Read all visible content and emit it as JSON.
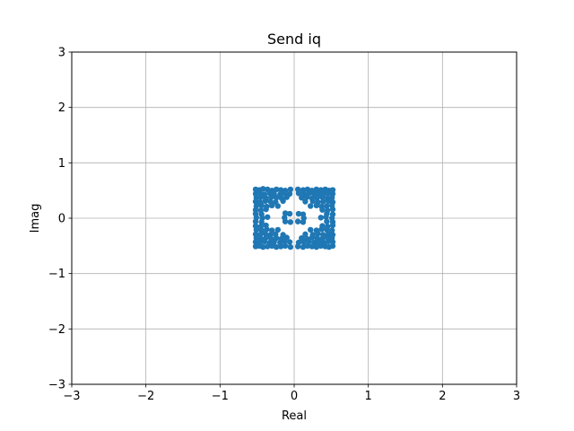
{
  "chart_data": {
    "type": "scatter",
    "title": "Send iq",
    "xlabel": "Real",
    "ylabel": "Imag",
    "xlim": [
      -3,
      3
    ],
    "ylim": [
      -3,
      3
    ],
    "xticks": [
      -3,
      -2,
      -1,
      0,
      1,
      2,
      3
    ],
    "yticks": [
      -3,
      -2,
      -1,
      0,
      1,
      2,
      3
    ],
    "xtick_labels": [
      "−3",
      "−2",
      "−1",
      "0",
      "1",
      "2",
      "3"
    ],
    "ytick_labels": [
      "−3",
      "−2",
      "−1",
      "0",
      "1",
      "2",
      "3"
    ],
    "grid": true,
    "series": [
      {
        "color": "#1f77b4",
        "marker": "dot",
        "points": [
          [
            -0.52,
            0.52
          ],
          [
            -0.47,
            0.51
          ],
          [
            -0.42,
            0.53
          ],
          [
            -0.36,
            0.52
          ],
          [
            -0.3,
            0.5
          ],
          [
            -0.24,
            0.52
          ],
          [
            -0.18,
            0.51
          ],
          [
            -0.12,
            0.5
          ],
          [
            -0.05,
            0.52
          ],
          [
            0.05,
            0.52
          ],
          [
            0.12,
            0.51
          ],
          [
            0.18,
            0.52
          ],
          [
            0.24,
            0.5
          ],
          [
            0.3,
            0.52
          ],
          [
            0.36,
            0.51
          ],
          [
            0.42,
            0.52
          ],
          [
            0.47,
            0.5
          ],
          [
            0.52,
            0.51
          ],
          [
            -0.52,
            0.44
          ],
          [
            -0.46,
            0.45
          ],
          [
            -0.4,
            0.43
          ],
          [
            -0.33,
            0.45
          ],
          [
            -0.27,
            0.44
          ],
          [
            -0.19,
            0.43
          ],
          [
            -0.13,
            0.45
          ],
          [
            -0.06,
            0.44
          ],
          [
            0.06,
            0.45
          ],
          [
            0.13,
            0.44
          ],
          [
            0.2,
            0.45
          ],
          [
            0.27,
            0.43
          ],
          [
            0.33,
            0.45
          ],
          [
            0.4,
            0.44
          ],
          [
            0.46,
            0.45
          ],
          [
            0.52,
            0.44
          ],
          [
            -0.51,
            0.37
          ],
          [
            -0.45,
            0.38
          ],
          [
            -0.38,
            0.36
          ],
          [
            -0.31,
            0.38
          ],
          [
            -0.24,
            0.37
          ],
          [
            -0.17,
            0.36
          ],
          [
            -0.1,
            0.38
          ],
          [
            0.1,
            0.37
          ],
          [
            0.17,
            0.38
          ],
          [
            0.24,
            0.36
          ],
          [
            0.31,
            0.37
          ],
          [
            0.38,
            0.38
          ],
          [
            0.45,
            0.36
          ],
          [
            0.51,
            0.37
          ],
          [
            -0.52,
            0.3
          ],
          [
            -0.46,
            0.29
          ],
          [
            -0.39,
            0.31
          ],
          [
            -0.32,
            0.3
          ],
          [
            -0.25,
            0.29
          ],
          [
            -0.15,
            0.31
          ],
          [
            0.15,
            0.3
          ],
          [
            0.25,
            0.31
          ],
          [
            0.32,
            0.29
          ],
          [
            0.39,
            0.3
          ],
          [
            0.46,
            0.31
          ],
          [
            0.52,
            0.29
          ],
          [
            -0.51,
            0.22
          ],
          [
            -0.44,
            0.23
          ],
          [
            -0.37,
            0.21
          ],
          [
            -0.3,
            0.23
          ],
          [
            -0.22,
            0.22
          ],
          [
            0.22,
            0.22
          ],
          [
            0.3,
            0.23
          ],
          [
            0.37,
            0.21
          ],
          [
            0.44,
            0.22
          ],
          [
            0.51,
            0.23
          ],
          [
            -0.52,
            0.15
          ],
          [
            -0.45,
            0.14
          ],
          [
            -0.38,
            0.16
          ],
          [
            0.38,
            0.15
          ],
          [
            0.45,
            0.14
          ],
          [
            0.52,
            0.16
          ],
          [
            -0.52,
            0.08
          ],
          [
            -0.44,
            0.07
          ],
          [
            -0.12,
            0.09
          ],
          [
            -0.06,
            0.08
          ],
          [
            0.06,
            0.08
          ],
          [
            0.12,
            0.07
          ],
          [
            0.44,
            0.08
          ],
          [
            0.52,
            0.07
          ],
          [
            -0.51,
            0.01
          ],
          [
            -0.43,
            0.0
          ],
          [
            -0.36,
            0.02
          ],
          [
            -0.13,
            0.01
          ],
          [
            0.13,
            0.0
          ],
          [
            0.36,
            0.01
          ],
          [
            0.43,
            0.02
          ],
          [
            0.51,
            0.0
          ],
          [
            -0.52,
            -0.06
          ],
          [
            -0.44,
            -0.07
          ],
          [
            -0.12,
            -0.06
          ],
          [
            -0.05,
            -0.07
          ],
          [
            0.05,
            -0.06
          ],
          [
            0.12,
            -0.07
          ],
          [
            0.44,
            -0.06
          ],
          [
            0.52,
            -0.07
          ],
          [
            -0.52,
            -0.14
          ],
          [
            -0.45,
            -0.15
          ],
          [
            -0.38,
            -0.13
          ],
          [
            0.38,
            -0.14
          ],
          [
            0.45,
            -0.15
          ],
          [
            0.52,
            -0.13
          ],
          [
            -0.51,
            -0.21
          ],
          [
            -0.44,
            -0.22
          ],
          [
            -0.37,
            -0.2
          ],
          [
            -0.3,
            -0.22
          ],
          [
            -0.22,
            -0.21
          ],
          [
            0.22,
            -0.21
          ],
          [
            0.3,
            -0.22
          ],
          [
            0.37,
            -0.2
          ],
          [
            0.44,
            -0.21
          ],
          [
            0.51,
            -0.22
          ],
          [
            -0.52,
            -0.29
          ],
          [
            -0.46,
            -0.3
          ],
          [
            -0.39,
            -0.28
          ],
          [
            -0.32,
            -0.3
          ],
          [
            -0.25,
            -0.29
          ],
          [
            -0.15,
            -0.3
          ],
          [
            0.15,
            -0.29
          ],
          [
            0.25,
            -0.3
          ],
          [
            0.32,
            -0.28
          ],
          [
            0.39,
            -0.3
          ],
          [
            0.46,
            -0.29
          ],
          [
            0.52,
            -0.3
          ],
          [
            -0.51,
            -0.36
          ],
          [
            -0.45,
            -0.37
          ],
          [
            -0.38,
            -0.35
          ],
          [
            -0.31,
            -0.37
          ],
          [
            -0.24,
            -0.36
          ],
          [
            -0.17,
            -0.37
          ],
          [
            -0.1,
            -0.35
          ],
          [
            0.1,
            -0.36
          ],
          [
            0.17,
            -0.37
          ],
          [
            0.24,
            -0.35
          ],
          [
            0.31,
            -0.36
          ],
          [
            0.38,
            -0.37
          ],
          [
            0.45,
            -0.35
          ],
          [
            0.51,
            -0.36
          ],
          [
            -0.52,
            -0.43
          ],
          [
            -0.46,
            -0.44
          ],
          [
            -0.4,
            -0.42
          ],
          [
            -0.33,
            -0.44
          ],
          [
            -0.27,
            -0.43
          ],
          [
            -0.19,
            -0.44
          ],
          [
            -0.13,
            -0.42
          ],
          [
            -0.06,
            -0.43
          ],
          [
            0.06,
            -0.44
          ],
          [
            0.13,
            -0.43
          ],
          [
            0.2,
            -0.42
          ],
          [
            0.27,
            -0.44
          ],
          [
            0.33,
            -0.43
          ],
          [
            0.4,
            -0.44
          ],
          [
            0.46,
            -0.42
          ],
          [
            0.52,
            -0.43
          ],
          [
            -0.52,
            -0.51
          ],
          [
            -0.47,
            -0.5
          ],
          [
            -0.42,
            -0.52
          ],
          [
            -0.36,
            -0.51
          ],
          [
            -0.3,
            -0.5
          ],
          [
            -0.24,
            -0.52
          ],
          [
            -0.18,
            -0.51
          ],
          [
            -0.12,
            -0.5
          ],
          [
            -0.05,
            -0.52
          ],
          [
            0.05,
            -0.51
          ],
          [
            0.12,
            -0.52
          ],
          [
            0.18,
            -0.5
          ],
          [
            0.24,
            -0.51
          ],
          [
            0.3,
            -0.52
          ],
          [
            0.36,
            -0.5
          ],
          [
            0.42,
            -0.51
          ],
          [
            0.47,
            -0.52
          ],
          [
            0.52,
            -0.5
          ]
        ]
      }
    ]
  }
}
